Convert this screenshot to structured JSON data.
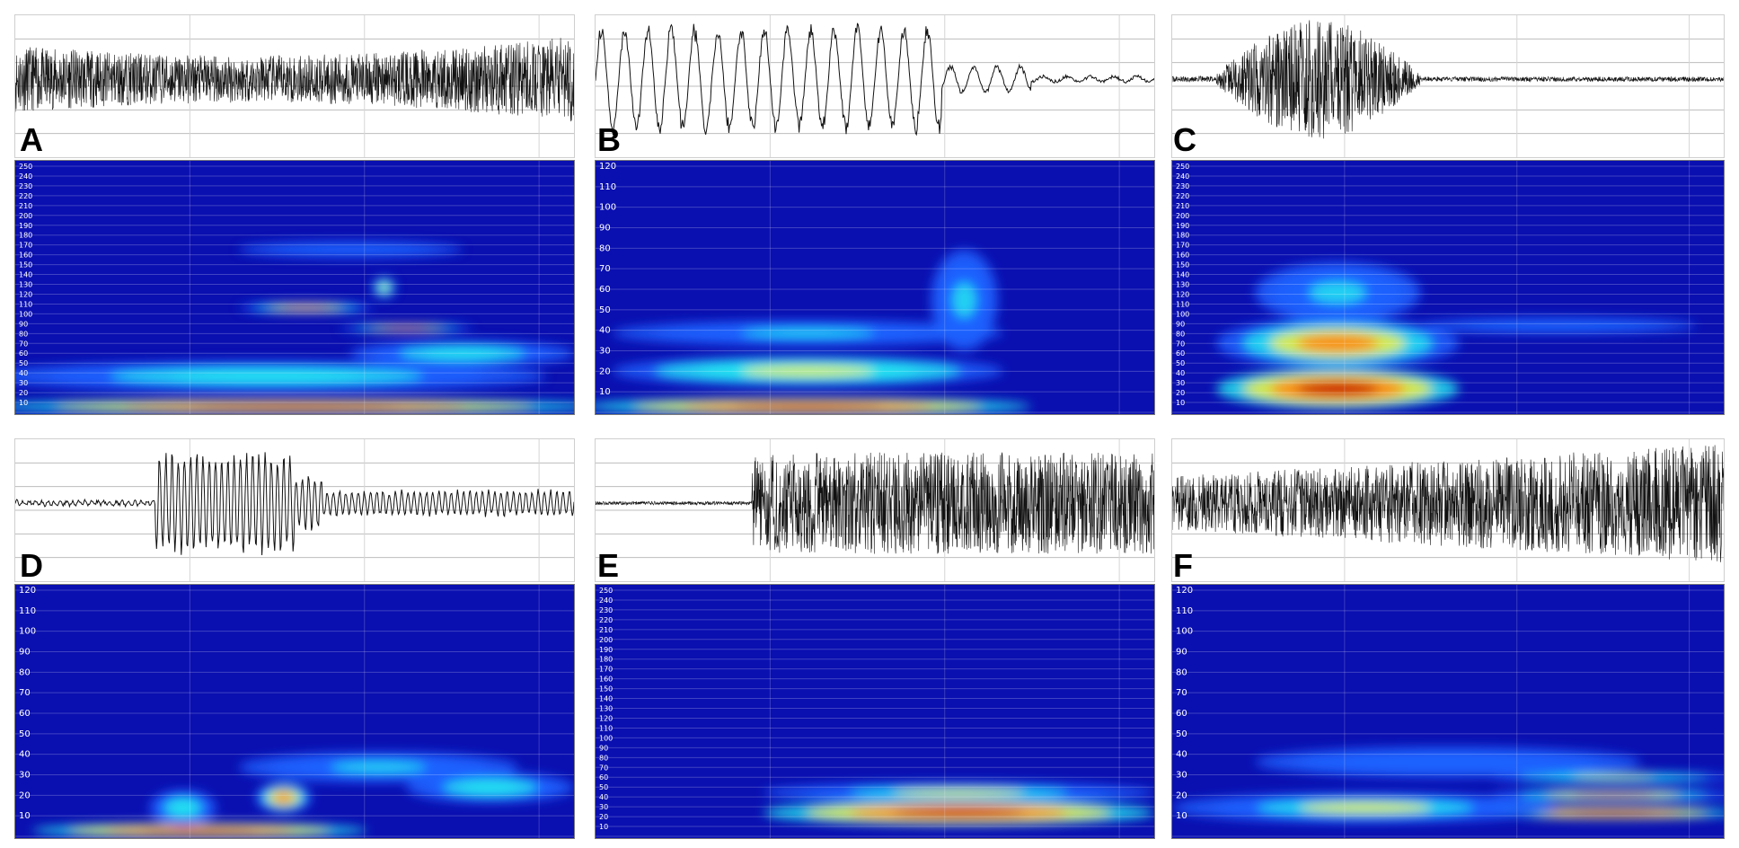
{
  "colors": {
    "background": "#ffffff",
    "spectrogram_low": "#0a0fb0",
    "trace_line": "#111111"
  },
  "panels": [
    {
      "letter": "A",
      "axis_max": 250,
      "axis_step": 10
    },
    {
      "letter": "B",
      "axis_max": 120,
      "axis_step": 10
    },
    {
      "letter": "C",
      "axis_max": 250,
      "axis_step": 10
    },
    {
      "letter": "D",
      "axis_max": 120,
      "axis_step": 10
    },
    {
      "letter": "E",
      "axis_max": 250,
      "axis_step": 10
    },
    {
      "letter": "F",
      "axis_max": 120,
      "axis_step": 10
    }
  ]
}
